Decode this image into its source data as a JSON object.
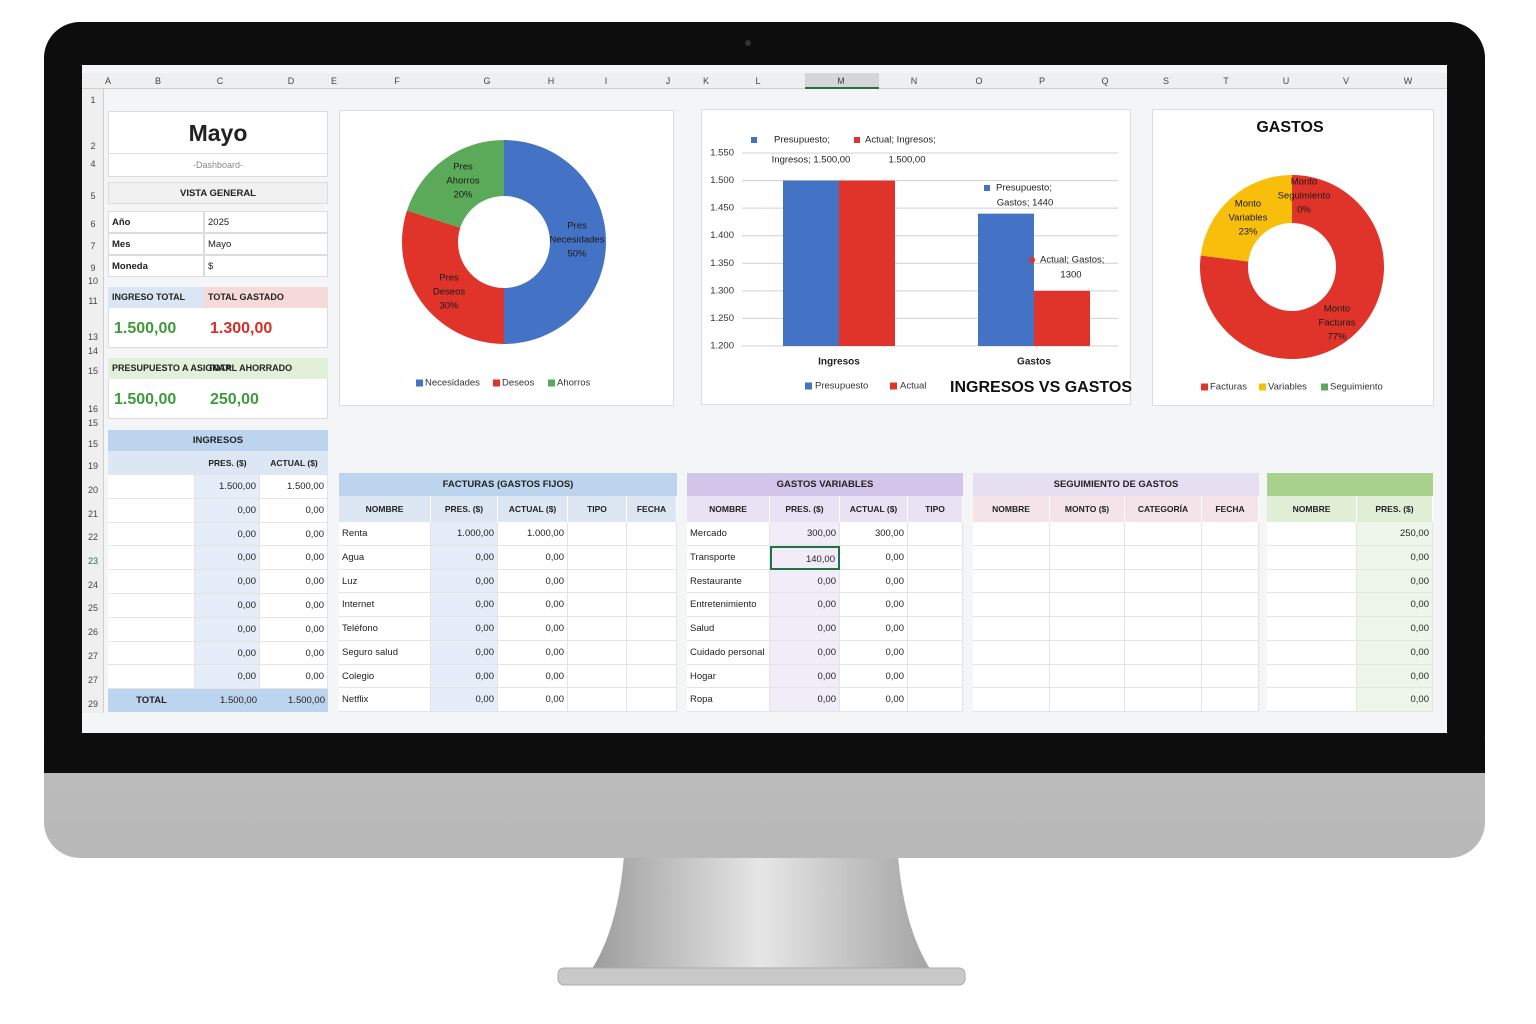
{
  "sheet": {
    "columns": [
      "A",
      "B",
      "C",
      "D",
      "E",
      "F",
      "G",
      "H",
      "I",
      "J",
      "K",
      "L",
      "M",
      "N",
      "O",
      "P",
      "Q",
      "S",
      "T",
      "U",
      "V",
      "W"
    ],
    "rows": [
      "1",
      "2",
      "4",
      "5",
      "6",
      "7",
      "9",
      "10",
      "11",
      "13",
      "14",
      "15",
      "16",
      "15",
      "15",
      "19",
      "20",
      "21",
      "22",
      "23",
      "24",
      "25",
      "26",
      "27",
      "27",
      "29"
    ]
  },
  "header": {
    "title": "Mayo",
    "subtitle": "-Dashboard-"
  },
  "overview": {
    "title": "VISTA GENERAL",
    "fields": [
      {
        "label": "Año",
        "value": "2025"
      },
      {
        "label": "Mes",
        "value": "Mayo"
      },
      {
        "label": "Moneda",
        "value": "$"
      }
    ]
  },
  "summary": [
    {
      "label": "INGRESO TOTAL",
      "value": "1.500,00"
    },
    {
      "label": "TOTAL GASTADO",
      "value": "1.300,00"
    },
    {
      "label": "PRESUPUESTO A ASIGNAR",
      "value": "1.500,00"
    },
    {
      "label": "TOTAL AHORRADO",
      "value": "250,00"
    }
  ],
  "income": {
    "title": "INGRESOS",
    "headers": [
      "PRES. ($)",
      "ACTUAL ($)"
    ],
    "rows": [
      [
        "1.500,00",
        "1.500,00"
      ],
      [
        "0,00",
        "0,00"
      ],
      [
        "0,00",
        "0,00"
      ],
      [
        "0,00",
        "0,00"
      ],
      [
        "0,00",
        "0,00"
      ],
      [
        "0,00",
        "0,00"
      ],
      [
        "0,00",
        "0,00"
      ],
      [
        "0,00",
        "0,00"
      ],
      [
        "0,00",
        "0,00"
      ]
    ],
    "total": {
      "label": "TOTAL",
      "values": [
        "1.500,00",
        "1.500,00"
      ]
    }
  },
  "tables": [
    {
      "title": "FACTURAS (GASTOS FIJOS)",
      "headers": [
        "NOMBRE",
        "PRES. ($)",
        "ACTUAL ($)",
        "TIPO",
        "FECHA"
      ],
      "rows": [
        [
          "Renta",
          "1.000,00",
          "1.000,00"
        ],
        [
          "Agua",
          "0,00",
          "0,00"
        ],
        [
          "Luz",
          "0,00",
          "0,00"
        ],
        [
          "Internet",
          "0,00",
          "0,00"
        ],
        [
          "Teléfono",
          "0,00",
          "0,00"
        ],
        [
          "Seguro salud",
          "0,00",
          "0,00"
        ],
        [
          "Colegio",
          "0,00",
          "0,00"
        ],
        [
          "Netflix",
          "0,00",
          "0,00"
        ]
      ]
    },
    {
      "title": "GASTOS VARIABLES",
      "headers": [
        "NOMBRE",
        "PRES. ($)",
        "ACTUAL ($)",
        "TIPO"
      ],
      "rows": [
        [
          "Mercado",
          "300,00",
          "300,00"
        ],
        [
          "Transporte",
          "140,00",
          "0,00"
        ],
        [
          "Restaurante",
          "0,00",
          "0,00"
        ],
        [
          "Entretenimiento",
          "0,00",
          "0,00"
        ],
        [
          "Salud",
          "0,00",
          "0,00"
        ],
        [
          "Cuidado personal",
          "0,00",
          "0,00"
        ],
        [
          "Hogar",
          "0,00",
          "0,00"
        ],
        [
          "Ropa",
          "0,00",
          "0,00"
        ]
      ]
    },
    {
      "title": "SEGUIMIENTO DE GASTOS",
      "headers": [
        "NOMBRE",
        "MONTO ($)",
        "CATEGORÍA",
        "FECHA"
      ],
      "rows": []
    },
    {
      "headers": [
        "NOMBRE",
        "PRES. ($)"
      ],
      "rows": [
        [
          "250,00"
        ],
        [
          "0,00"
        ],
        [
          "0,00"
        ],
        [
          "0,00"
        ],
        [
          "0,00"
        ],
        [
          "0,00"
        ],
        [
          "0,00"
        ],
        [
          "0,00"
        ]
      ]
    }
  ],
  "chart_data": [
    {
      "type": "pie",
      "categories": [
        "Necesidades",
        "Deseos",
        "Ahorros"
      ],
      "values": [
        50,
        30,
        20
      ],
      "colors": [
        "#4472c4",
        "#e0342b",
        "#5aaa5a"
      ],
      "value_labels": [
        [
          "Pres",
          "Necesidades",
          "50%"
        ],
        [
          "Pres",
          "Deseos",
          "30%"
        ],
        [
          "Pres",
          "Ahorros",
          "20%"
        ]
      ]
    },
    {
      "type": "bar",
      "title": "INGRESOS VS GASTOS",
      "categories": [
        "Ingresos",
        "Gastos"
      ],
      "series": [
        {
          "name": "Presupuesto",
          "color": "#4472c4",
          "values": [
            1500,
            1440
          ],
          "value_labels": [
            [
              "Presupuesto;",
              "Ingresos; 1.500,00"
            ],
            [
              "Presupuesto;",
              "Gastos; 1440"
            ]
          ]
        },
        {
          "name": "Actual",
          "color": "#e0342b",
          "values": [
            1500,
            1300
          ],
          "value_labels": [
            [
              "Actual; Ingresos;",
              "1.500,00"
            ],
            [
              "Actual; Gastos;",
              "1300"
            ]
          ]
        }
      ],
      "ylim": [
        1200,
        1550
      ],
      "yticks": [
        {
          "value": 1200,
          "label": "1.200"
        },
        {
          "value": 1250,
          "label": "1.250"
        },
        {
          "value": 1300,
          "label": "1.300"
        },
        {
          "value": 1350,
          "label": "1.350"
        },
        {
          "value": 1400,
          "label": "1.400"
        },
        {
          "value": 1450,
          "label": "1.450"
        },
        {
          "value": 1500,
          "label": "1.500"
        },
        {
          "value": 1550,
          "label": "1.550"
        }
      ],
      "grid": true
    },
    {
      "type": "pie",
      "title": "GASTOS",
      "categories": [
        "Facturas",
        "Variables",
        "Seguimiento"
      ],
      "values": [
        77,
        23,
        0
      ],
      "colors": [
        "#e0342b",
        "#f7bf0b",
        "#5aaa5a"
      ],
      "value_labels": [
        [
          "Monto",
          "Facturas",
          "77%"
        ],
        [
          "Monto",
          "Variables",
          "23%"
        ],
        [
          "Monto",
          "Seguimiento",
          "0%"
        ]
      ]
    }
  ]
}
